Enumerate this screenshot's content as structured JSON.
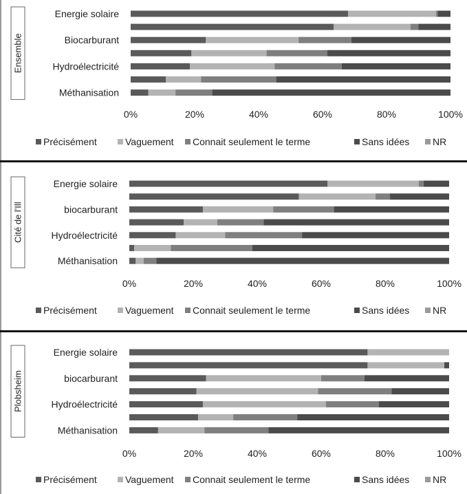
{
  "legend_labels": [
    "Précisément",
    "Vaguement",
    "Connait seulement le terme",
    "Sans idées",
    "NR"
  ],
  "colors": {
    "Précisément": "#5a5a5a",
    "Vaguement": "#b3b3b3",
    "Connait seulement le terme": "#7f7f7f",
    "Sans idées": "#4b4b4b",
    "NR": "#9a9a9a"
  },
  "chart_data": [
    {
      "type": "bar",
      "orientation": "horizontal",
      "stacked": "percent",
      "group_label": "Ensemble",
      "categories": [
        "Energie solaire",
        "",
        "Biocarburant",
        "",
        "Hydroélectricité",
        "",
        "Méthanisation"
      ],
      "series": [
        {
          "name": "Précisément",
          "values": [
            68,
            63.5,
            23.5,
            19,
            18.5,
            11,
            5.5
          ]
        },
        {
          "name": "Vaguement",
          "values": [
            27.5,
            24,
            29,
            23.5,
            26.5,
            11,
            8.5
          ]
        },
        {
          "name": "Connait seulement le terme",
          "values": [
            0.5,
            2.5,
            16.5,
            19,
            21,
            23.5,
            11.5
          ]
        },
        {
          "name": "Sans idées",
          "values": [
            4,
            10,
            31,
            38.5,
            34,
            54.5,
            74.5
          ]
        },
        {
          "name": "NR",
          "values": [
            0,
            0,
            0,
            0,
            0,
            0,
            0
          ]
        }
      ],
      "xlim": [
        0,
        100
      ],
      "xticks": [
        "0%",
        "20%",
        "40%",
        "60%",
        "80%",
        "100%"
      ],
      "legend_position": "bottom",
      "grid": false
    },
    {
      "type": "bar",
      "orientation": "horizontal",
      "stacked": "percent",
      "group_label": "Cité de l'Ill",
      "categories": [
        "Energie solaire",
        "",
        "biocarburant",
        "",
        "Hydroélectricité",
        "",
        "Méthanisation"
      ],
      "series": [
        {
          "name": "Précisément",
          "values": [
            62,
            53,
            23,
            17,
            14.5,
            1.5,
            2
          ]
        },
        {
          "name": "Vaguement",
          "values": [
            28.5,
            24,
            22,
            10.5,
            15.5,
            11.5,
            2.5
          ]
        },
        {
          "name": "Connait seulement le terme",
          "values": [
            1.5,
            4.5,
            19,
            14.5,
            24,
            25.5,
            4
          ]
        },
        {
          "name": "Sans idées",
          "values": [
            8,
            18.5,
            36,
            58,
            46,
            61.5,
            91.5
          ]
        },
        {
          "name": "NR",
          "values": [
            0,
            0,
            0,
            0,
            0,
            0,
            0
          ]
        }
      ],
      "xlim": [
        0,
        100
      ],
      "xticks": [
        "0%",
        "20%",
        "40%",
        "60%",
        "80%",
        "100%"
      ],
      "legend_position": "bottom",
      "grid": false
    },
    {
      "type": "bar",
      "orientation": "horizontal",
      "stacked": "percent",
      "group_label": "Plobsheim",
      "categories": [
        "Energie solaire",
        "",
        "biocarburant",
        "",
        "Hydroélectricité",
        "",
        "Méthanisation"
      ],
      "series": [
        {
          "name": "Précisément",
          "values": [
            74.5,
            74.5,
            24,
            21,
            23,
            21.5,
            9
          ]
        },
        {
          "name": "Vaguement",
          "values": [
            25.5,
            24,
            36,
            38,
            38.5,
            11,
            14.5
          ]
        },
        {
          "name": "Connait seulement le terme",
          "values": [
            0,
            0,
            13.5,
            23,
            16.5,
            20,
            20
          ]
        },
        {
          "name": "Sans idées",
          "values": [
            0,
            1.5,
            26.5,
            18,
            22,
            47.5,
            56.5
          ]
        },
        {
          "name": "NR",
          "values": [
            0,
            0,
            0,
            0,
            0,
            0,
            0
          ]
        }
      ],
      "xlim": [
        0,
        100
      ],
      "xticks": [
        "0%",
        "20%",
        "40%",
        "60%",
        "80%",
        "100%"
      ],
      "legend_position": "bottom",
      "grid": false
    }
  ]
}
